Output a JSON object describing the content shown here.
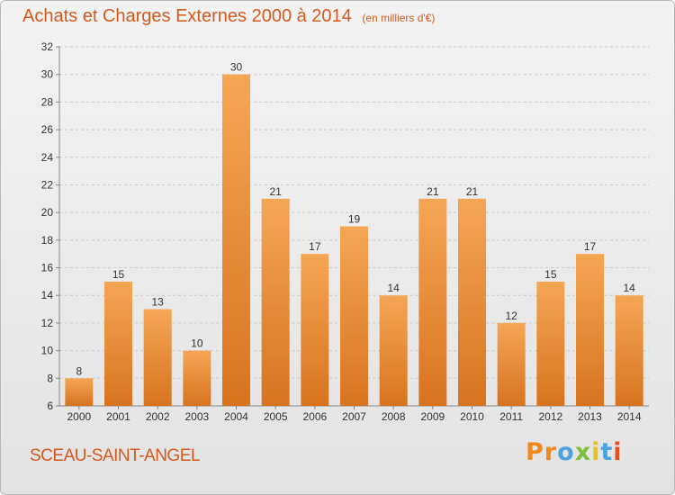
{
  "chart_data": {
    "type": "bar",
    "title": "Achats et Charges Externes 2000 à 2014",
    "subtitle": "(en milliers d'€)",
    "xlabel": "",
    "ylabel": "",
    "categories": [
      "2000",
      "2001",
      "2002",
      "2003",
      "2004",
      "2005",
      "2006",
      "2007",
      "2008",
      "2009",
      "2010",
      "2011",
      "2012",
      "2013",
      "2014"
    ],
    "values": [
      8,
      15,
      13,
      10,
      30,
      21,
      17,
      19,
      14,
      21,
      21,
      12,
      15,
      17,
      14
    ],
    "data_labels": [
      "8",
      "15",
      "13",
      "10",
      "30",
      "21",
      "17",
      "19",
      "14",
      "21",
      "21",
      "12",
      "15",
      "17",
      "14"
    ],
    "ylim": [
      6,
      32
    ],
    "yticks": [
      "6",
      "8",
      "10",
      "12",
      "14",
      "16",
      "18",
      "20",
      "22",
      "24",
      "26",
      "28",
      "30",
      "32"
    ],
    "grid": "horizontal dashed",
    "legend": "none",
    "colors": {
      "bar_light": "#f4a655",
      "bar_dark": "#d8731f",
      "text": "#333333",
      "title": "#d35a1d"
    }
  },
  "footer": {
    "place": "SCEAU-SAINT-ANGEL"
  },
  "logo": {
    "letters": [
      "P",
      "r",
      "o",
      "x",
      "i",
      "t",
      "i"
    ],
    "colors": [
      "#f08a1e",
      "#f08a1e",
      "#4aa3df",
      "#7fbf3f",
      "#e8c21e",
      "#4aa3df",
      "#e84e1e"
    ]
  }
}
